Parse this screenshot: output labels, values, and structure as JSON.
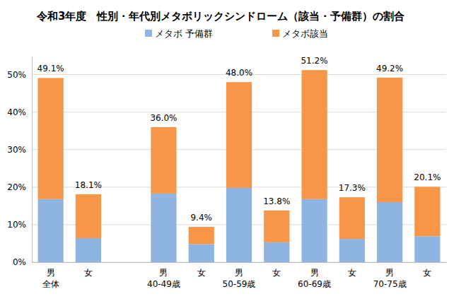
{
  "chart_data": {
    "type": "bar",
    "title": "令和3年度　性別・年代別メタボリックシンドローム（該当・予備群）の割合",
    "categories": [
      "男\n全体",
      "女",
      null,
      "男\n40-49歳",
      "女",
      "男\n50-59歳",
      "女",
      "男\n60-69歳",
      "女",
      "男\n70-75歳",
      "女"
    ],
    "series": [
      {
        "name": "メタボ 予備群",
        "color": "#8eb4e3",
        "values": [
          16.8,
          6.4,
          null,
          18.3,
          4.8,
          19.8,
          5.3,
          16.8,
          6.2,
          16.0,
          6.9
        ]
      },
      {
        "name": "メタボ該当",
        "color": "#f79646",
        "values": [
          32.3,
          11.7,
          null,
          17.7,
          4.6,
          28.2,
          8.5,
          34.4,
          11.1,
          33.2,
          13.2
        ]
      }
    ],
    "totals": [
      49.1,
      18.1,
      null,
      36.0,
      9.4,
      48.0,
      13.8,
      51.2,
      17.3,
      49.2,
      20.1
    ],
    "total_labels": [
      "49.1%",
      "18.1%",
      null,
      "36.0%",
      "9.4%",
      "48.0%",
      "13.8%",
      "51.2%",
      "17.3%",
      "49.2%",
      "20.1%"
    ],
    "ylim": [
      0,
      55
    ],
    "yticks": [
      {
        "value": 0,
        "label": "0%"
      },
      {
        "value": 10,
        "label": "10%"
      },
      {
        "value": 20,
        "label": "20%"
      },
      {
        "value": 30,
        "label": "30%"
      },
      {
        "value": 40,
        "label": "40%"
      },
      {
        "value": 50,
        "label": "50%"
      }
    ],
    "stacked": true,
    "grid": true,
    "legend": "top"
  }
}
